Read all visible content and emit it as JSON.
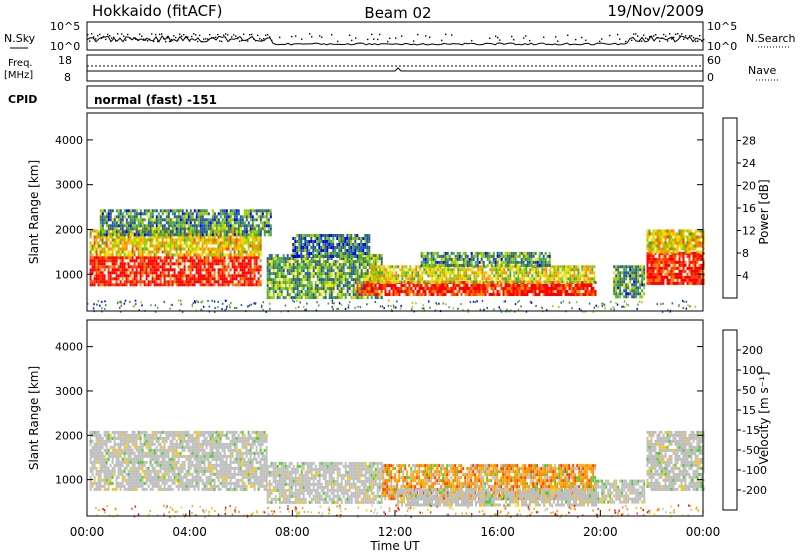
{
  "header": {
    "station": "Hokkaido (fitACF)",
    "beam": "Beam 02",
    "date": "19/Nov/2009"
  },
  "summary": {
    "nsky_label": "N.Sky",
    "nsky_ticks": [
      "10^5",
      "10^0"
    ],
    "nsearch_label": "N.Search",
    "nsearch_ticks": [
      "10^5",
      "10^0"
    ],
    "freq_label_1": "Freq.",
    "freq_label_2": "[MHz]",
    "freq_ticks": [
      "18",
      "8"
    ],
    "nave_label": "Nave",
    "nave_ticks": [
      "60",
      "0"
    ],
    "cpid_label": "CPID",
    "cpid_value": "normal (fast) -151"
  },
  "chart_data": [
    {
      "type": "heatmap",
      "name": "power-panel",
      "ylabel": "Slant Range [km]",
      "yticks": [
        1000,
        2000,
        3000,
        4000
      ],
      "ylim": [
        180,
        4600
      ],
      "xlim": [
        0,
        24
      ],
      "colorbar": {
        "label": "Power [dB]",
        "ticks": [
          "28",
          "24",
          "20",
          "16",
          "12",
          "8",
          "4"
        ],
        "colors": [
          "#ff0000",
          "#ff4400",
          "#ff8800",
          "#ffbb00",
          "#e8e800",
          "#99cc00",
          "#44aa44",
          "#447744",
          "#2255aa",
          "#0000ff"
        ]
      },
      "regions": [
        {
          "t0": 0.1,
          "t1": 6.8,
          "r0": 750,
          "r1": 1400,
          "level": 0.95
        },
        {
          "t0": 0.1,
          "t1": 6.8,
          "r0": 1400,
          "r1": 2000,
          "level": 0.6
        },
        {
          "t0": 0.5,
          "t1": 7.2,
          "r0": 1900,
          "r1": 2450,
          "level": 0.3
        },
        {
          "t0": 7.0,
          "t1": 11.5,
          "r0": 500,
          "r1": 1450,
          "level": 0.35
        },
        {
          "t0": 8.0,
          "t1": 11.0,
          "r0": 1400,
          "r1": 1900,
          "level": 0.25
        },
        {
          "t0": 10.5,
          "t1": 19.8,
          "r0": 550,
          "r1": 850,
          "level": 0.92
        },
        {
          "t0": 11.0,
          "t1": 19.8,
          "r0": 850,
          "r1": 1200,
          "level": 0.55
        },
        {
          "t0": 13.0,
          "t1": 18.0,
          "r0": 1200,
          "r1": 1500,
          "level": 0.3
        },
        {
          "t0": 20.5,
          "t1": 21.7,
          "r0": 500,
          "r1": 1200,
          "level": 0.3
        },
        {
          "t0": 21.8,
          "t1": 24.0,
          "r0": 800,
          "r1": 1500,
          "level": 0.95
        },
        {
          "t0": 21.8,
          "t1": 24.0,
          "r0": 1500,
          "r1": 2000,
          "level": 0.6
        }
      ]
    },
    {
      "type": "heatmap",
      "name": "velocity-panel",
      "ylabel": "Slant Range [km]",
      "yticks": [
        1000,
        2000,
        3000,
        4000
      ],
      "ylim": [
        180,
        4600
      ],
      "xlim": [
        0,
        24
      ],
      "xticks": [
        "00:00",
        "04:00",
        "08:00",
        "12:00",
        "16:00",
        "20:00",
        "00:00"
      ],
      "xlabel": "Time UT",
      "colorbar": {
        "label": "Velocity [m s⁻¹]",
        "ticks": [
          "200",
          "100",
          "50",
          "15",
          "-15",
          "-50",
          "-100",
          "-200"
        ],
        "colors": [
          "#1a1aa8",
          "#2255bb",
          "#2f8f3f",
          "#55cc33",
          "#bfbfbf",
          "#ffcc00",
          "#ffaa00",
          "#ff8800",
          "#ff4400",
          "#ff0000"
        ]
      },
      "regions": [
        {
          "t0": 0.1,
          "t1": 7.0,
          "r0": 800,
          "r1": 2100,
          "level": 0.5
        },
        {
          "t0": 7.0,
          "t1": 11.5,
          "r0": 500,
          "r1": 1400,
          "level": 0.5
        },
        {
          "t0": 11.5,
          "t1": 19.8,
          "r0": 550,
          "r1": 1350,
          "level": 0.75
        },
        {
          "t0": 12.0,
          "t1": 19.8,
          "r0": 400,
          "r1": 800,
          "level": 0.4
        },
        {
          "t0": 19.8,
          "t1": 21.7,
          "r0": 500,
          "r1": 1000,
          "level": 0.5
        },
        {
          "t0": 21.8,
          "t1": 24.0,
          "r0": 800,
          "r1": 2100,
          "level": 0.5
        }
      ]
    }
  ]
}
